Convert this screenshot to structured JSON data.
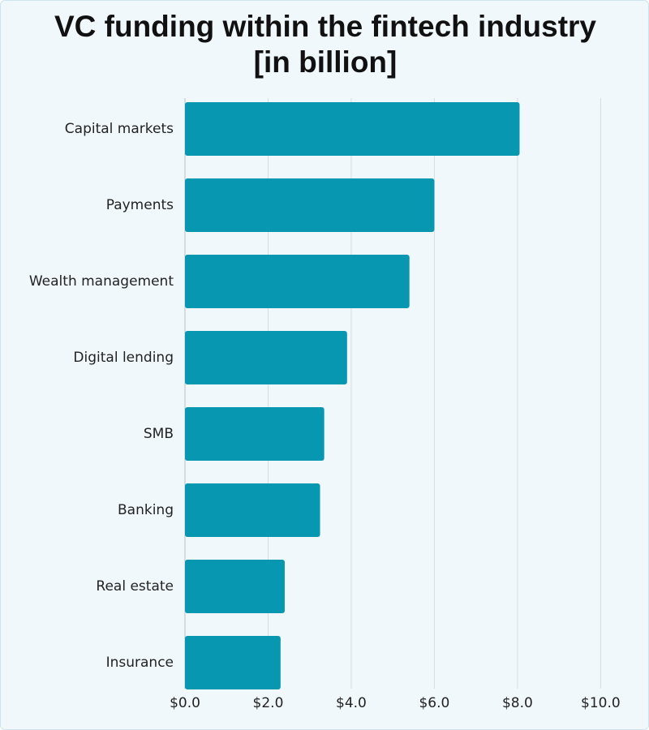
{
  "chart_data": {
    "type": "bar",
    "orientation": "horizontal",
    "title": "VC funding within the fintech industry [in billion]",
    "categories": [
      "Capital markets",
      "Payments",
      "Wealth management",
      "Digital lending",
      "SMB",
      "Banking",
      "Real estate",
      "Insurance"
    ],
    "values": [
      8.05,
      6.0,
      5.4,
      3.9,
      3.35,
      3.25,
      2.4,
      2.3
    ],
    "color": "#0797b1",
    "xlim": [
      0,
      10.5
    ],
    "xticks": [
      {
        "value": 0,
        "label": "$0.0"
      },
      {
        "value": 2,
        "label": "$2.0"
      },
      {
        "value": 4,
        "label": "$4.0"
      },
      {
        "value": 6,
        "label": "$6.0"
      },
      {
        "value": 8,
        "label": "$8.0"
      },
      {
        "value": 10,
        "label": "$10.0"
      }
    ],
    "grid": true
  }
}
